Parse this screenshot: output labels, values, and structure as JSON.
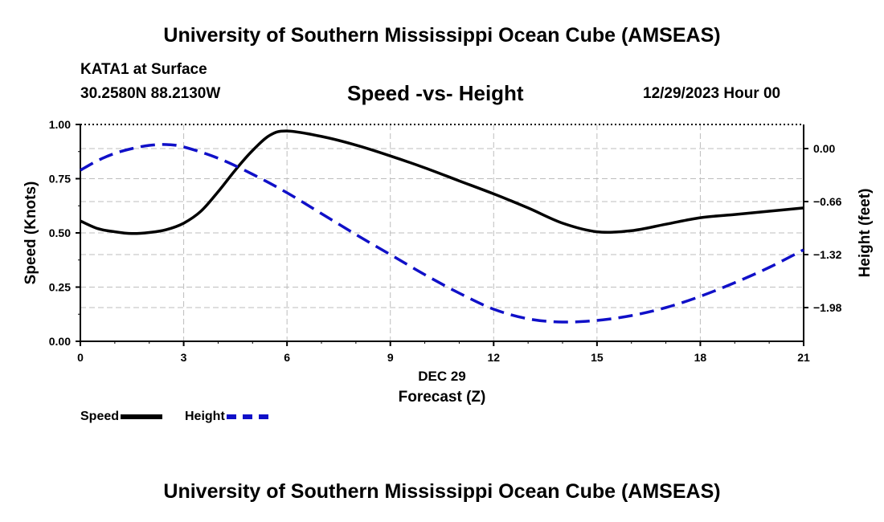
{
  "page": {
    "title": "University of Southern Mississippi Ocean Cube (AMSEAS)",
    "station": "KATA1 at Surface",
    "location": "30.2580N  88.2130W",
    "subtitle": "Speed -vs- Height",
    "datetime": "12/29/2023 Hour 00",
    "footer_title": "University of Southern Mississippi Ocean Cube (AMSEAS)"
  },
  "legend": {
    "speed_label": "Speed",
    "height_label": "Height"
  },
  "colors": {
    "speed": "#000000",
    "height": "#1010c8",
    "grid": "#bdbdbd"
  },
  "chart_data": {
    "type": "line",
    "title": "Speed -vs- Height",
    "xlabel": "Forecast (Z)",
    "xlabel_date": "DEC 29",
    "ylabel_left": "Speed (Knots)",
    "ylabel_right": "Height (feet)",
    "xlim": [
      0,
      21
    ],
    "ylim_left": [
      0,
      1.0
    ],
    "ylim_right": [
      -2.4,
      0.3
    ],
    "x_ticks": [
      0,
      3,
      6,
      9,
      12,
      15,
      18,
      21
    ],
    "x_tick_labels": [
      "0",
      "3",
      "6",
      "9",
      "12",
      "15",
      "18",
      "21"
    ],
    "y_left_ticks": [
      0,
      0.25,
      0.5,
      0.75,
      1.0
    ],
    "y_left_tick_labels": [
      "0.00",
      "0.25",
      "0.50",
      "0.75",
      "1.00"
    ],
    "y_right_ticks": [
      0.0,
      -0.66,
      -1.32,
      -1.98
    ],
    "y_right_tick_labels": [
      "0.00",
      "−0.66",
      "−1.32",
      "−1.98"
    ],
    "grid": true,
    "series": [
      {
        "name": "Speed",
        "axis": "left",
        "style": "solid",
        "x": [
          0,
          0.5,
          1,
          1.5,
          2,
          2.5,
          3,
          3.5,
          4,
          4.5,
          5,
          5.5,
          6,
          7,
          8,
          9,
          10,
          11,
          12,
          13,
          14,
          15,
          16,
          17,
          18,
          19,
          20,
          21
        ],
        "values": [
          0.555,
          0.52,
          0.505,
          0.497,
          0.502,
          0.515,
          0.545,
          0.6,
          0.69,
          0.79,
          0.88,
          0.95,
          0.97,
          0.945,
          0.905,
          0.855,
          0.8,
          0.74,
          0.68,
          0.615,
          0.545,
          0.505,
          0.51,
          0.54,
          0.57,
          0.585,
          0.6,
          0.615
        ]
      },
      {
        "name": "Height",
        "axis": "right",
        "style": "dashed",
        "x": [
          0,
          0.5,
          1,
          1.5,
          2,
          2.5,
          3,
          4,
          5,
          6,
          7,
          8,
          9,
          10,
          11,
          12,
          13,
          14,
          15,
          16,
          17,
          18,
          19,
          20,
          21
        ],
        "values": [
          -0.27,
          -0.15,
          -0.06,
          0.0,
          0.04,
          0.05,
          0.02,
          -0.12,
          -0.32,
          -0.55,
          -0.81,
          -1.07,
          -1.32,
          -1.57,
          -1.8,
          -2.0,
          -2.12,
          -2.16,
          -2.14,
          -2.08,
          -1.98,
          -1.84,
          -1.67,
          -1.48,
          -1.26
        ]
      }
    ]
  }
}
